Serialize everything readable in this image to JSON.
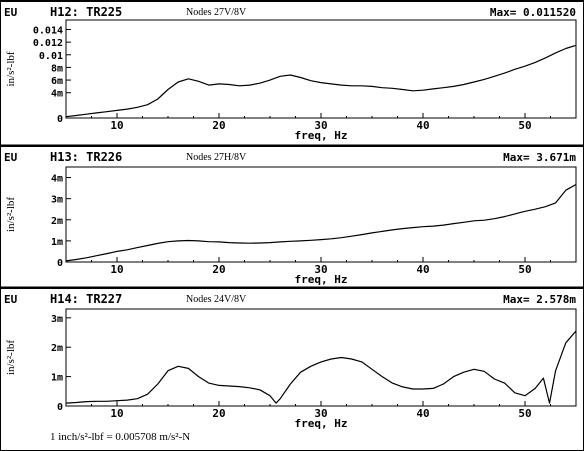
{
  "footnote": "1 inch/s²-lbf = 0.005708 m/s²-N",
  "chart_data": [
    {
      "type": "line",
      "eu_label": "EU",
      "title": "H12: TR225",
      "nodes": "Nodes 27V/8V",
      "max_label": "Max= 0.011520",
      "ylabel": "in/s²-lbf",
      "xlabel": "freq, Hz",
      "xlim": [
        5,
        55
      ],
      "ylim": [
        0,
        0.0155
      ],
      "x_ticks": [
        10,
        20,
        30,
        40,
        50
      ],
      "y_ticks": [
        {
          "value": 0,
          "label": "0"
        },
        {
          "value": 0.004,
          "label": "4m"
        },
        {
          "value": 0.006,
          "label": "6m"
        },
        {
          "value": 0.008,
          "label": "8m"
        },
        {
          "value": 0.01,
          "label": "0.01"
        },
        {
          "value": 0.012,
          "label": "0.012"
        },
        {
          "value": 0.014,
          "label": "0.014"
        }
      ],
      "series": [
        {
          "x": [
            5,
            6,
            7,
            8,
            9,
            10,
            11,
            12,
            13,
            14,
            15,
            16,
            17,
            18,
            19,
            20,
            21,
            22,
            23,
            24,
            25,
            26,
            27,
            28,
            29,
            30,
            31,
            32,
            33,
            34,
            35,
            36,
            37,
            38,
            39,
            40,
            41,
            42,
            43,
            44,
            45,
            46,
            47,
            48,
            49,
            50,
            51,
            52,
            53,
            54,
            55
          ],
          "y": [
            0.0002,
            0.0004,
            0.0006,
            0.0008,
            0.001,
            0.0012,
            0.0014,
            0.0017,
            0.0021,
            0.003,
            0.0045,
            0.0057,
            0.0062,
            0.0058,
            0.0052,
            0.0054,
            0.0053,
            0.0051,
            0.0052,
            0.0055,
            0.006,
            0.0066,
            0.0068,
            0.0064,
            0.0059,
            0.0056,
            0.0054,
            0.0052,
            0.0051,
            0.0051,
            0.005,
            0.0048,
            0.0047,
            0.0045,
            0.0043,
            0.0044,
            0.0046,
            0.0048,
            0.005,
            0.0053,
            0.0057,
            0.0061,
            0.0066,
            0.0071,
            0.0077,
            0.0082,
            0.0088,
            0.0095,
            0.0103,
            0.011,
            0.0115
          ]
        }
      ]
    },
    {
      "type": "line",
      "eu_label": "EU",
      "title": "H13: TR226",
      "nodes": "Nodes 27H/8V",
      "max_label": "Max= 3.671m",
      "ylabel": "in/s²-lbf",
      "xlabel": "freq, Hz",
      "xlim": [
        5,
        55
      ],
      "ylim": [
        0,
        0.0045
      ],
      "x_ticks": [
        10,
        20,
        30,
        40,
        50
      ],
      "y_ticks": [
        {
          "value": 0,
          "label": "0"
        },
        {
          "value": 0.001,
          "label": "1m"
        },
        {
          "value": 0.002,
          "label": "2m"
        },
        {
          "value": 0.003,
          "label": "3m"
        },
        {
          "value": 0.004,
          "label": "4m"
        }
      ],
      "series": [
        {
          "x": [
            5,
            6,
            7,
            8,
            9,
            10,
            11,
            12,
            13,
            14,
            15,
            16,
            17,
            18,
            19,
            20,
            21,
            22,
            23,
            24,
            25,
            26,
            27,
            28,
            29,
            30,
            31,
            32,
            33,
            34,
            35,
            36,
            37,
            38,
            39,
            40,
            41,
            42,
            43,
            44,
            45,
            46,
            47,
            48,
            49,
            50,
            51,
            52,
            53,
            54,
            55
          ],
          "y": [
            5e-05,
            0.00012,
            0.0002,
            0.0003,
            0.0004,
            0.0005,
            0.00058,
            0.00068,
            0.00078,
            0.00088,
            0.00096,
            0.001,
            0.00102,
            0.001,
            0.00096,
            0.00095,
            0.00092,
            0.0009,
            0.00089,
            0.0009,
            0.00092,
            0.00095,
            0.00098,
            0.001,
            0.00103,
            0.00106,
            0.0011,
            0.00115,
            0.00122,
            0.0013,
            0.00138,
            0.00145,
            0.00152,
            0.00158,
            0.00163,
            0.00167,
            0.0017,
            0.00175,
            0.00182,
            0.00188,
            0.00195,
            0.00198,
            0.00205,
            0.00215,
            0.00228,
            0.0024,
            0.0025,
            0.00262,
            0.0028,
            0.0034,
            0.00367
          ]
        }
      ]
    },
    {
      "type": "line",
      "eu_label": "EU",
      "title": "H14: TR227",
      "nodes": "Nodes 24V/8V",
      "max_label": "Max= 2.578m",
      "ylabel": "in/s²-lbf",
      "xlabel": "freq, Hz",
      "xlim": [
        5,
        55
      ],
      "ylim": [
        0,
        0.0033
      ],
      "x_ticks": [
        10,
        20,
        30,
        40,
        50
      ],
      "y_ticks": [
        {
          "value": 0,
          "label": "0"
        },
        {
          "value": 0.001,
          "label": "1m"
        },
        {
          "value": 0.002,
          "label": "2m"
        },
        {
          "value": 0.003,
          "label": "3m"
        }
      ],
      "series": [
        {
          "x": [
            5,
            6,
            7,
            8,
            9,
            10,
            11,
            12,
            13,
            14,
            15,
            16,
            17,
            18,
            19,
            20,
            21,
            22,
            23,
            24,
            25,
            25.6,
            26,
            27,
            28,
            29,
            30,
            31,
            32,
            33,
            34,
            35,
            36,
            37,
            38,
            39,
            40,
            41,
            42,
            43,
            44,
            45,
            46,
            47,
            48,
            49,
            50,
            51,
            51.8,
            52.4,
            53,
            54,
            55
          ],
          "y": [
            0.0001,
            0.00012,
            0.00015,
            0.00016,
            0.00016,
            0.00018,
            0.0002,
            0.00025,
            0.0004,
            0.00075,
            0.0012,
            0.00135,
            0.00128,
            0.001,
            0.00078,
            0.0007,
            0.00068,
            0.00066,
            0.00062,
            0.00055,
            0.00035,
            0.0001,
            0.00025,
            0.00075,
            0.00115,
            0.00135,
            0.0015,
            0.0016,
            0.00165,
            0.0016,
            0.0015,
            0.00125,
            0.001,
            0.00078,
            0.00065,
            0.00058,
            0.00058,
            0.0006,
            0.00075,
            0.001,
            0.00115,
            0.00125,
            0.00118,
            0.00092,
            0.00078,
            0.00045,
            0.00035,
            0.0006,
            0.00095,
            0.0001,
            0.0012,
            0.00215,
            0.00255
          ]
        }
      ]
    }
  ]
}
